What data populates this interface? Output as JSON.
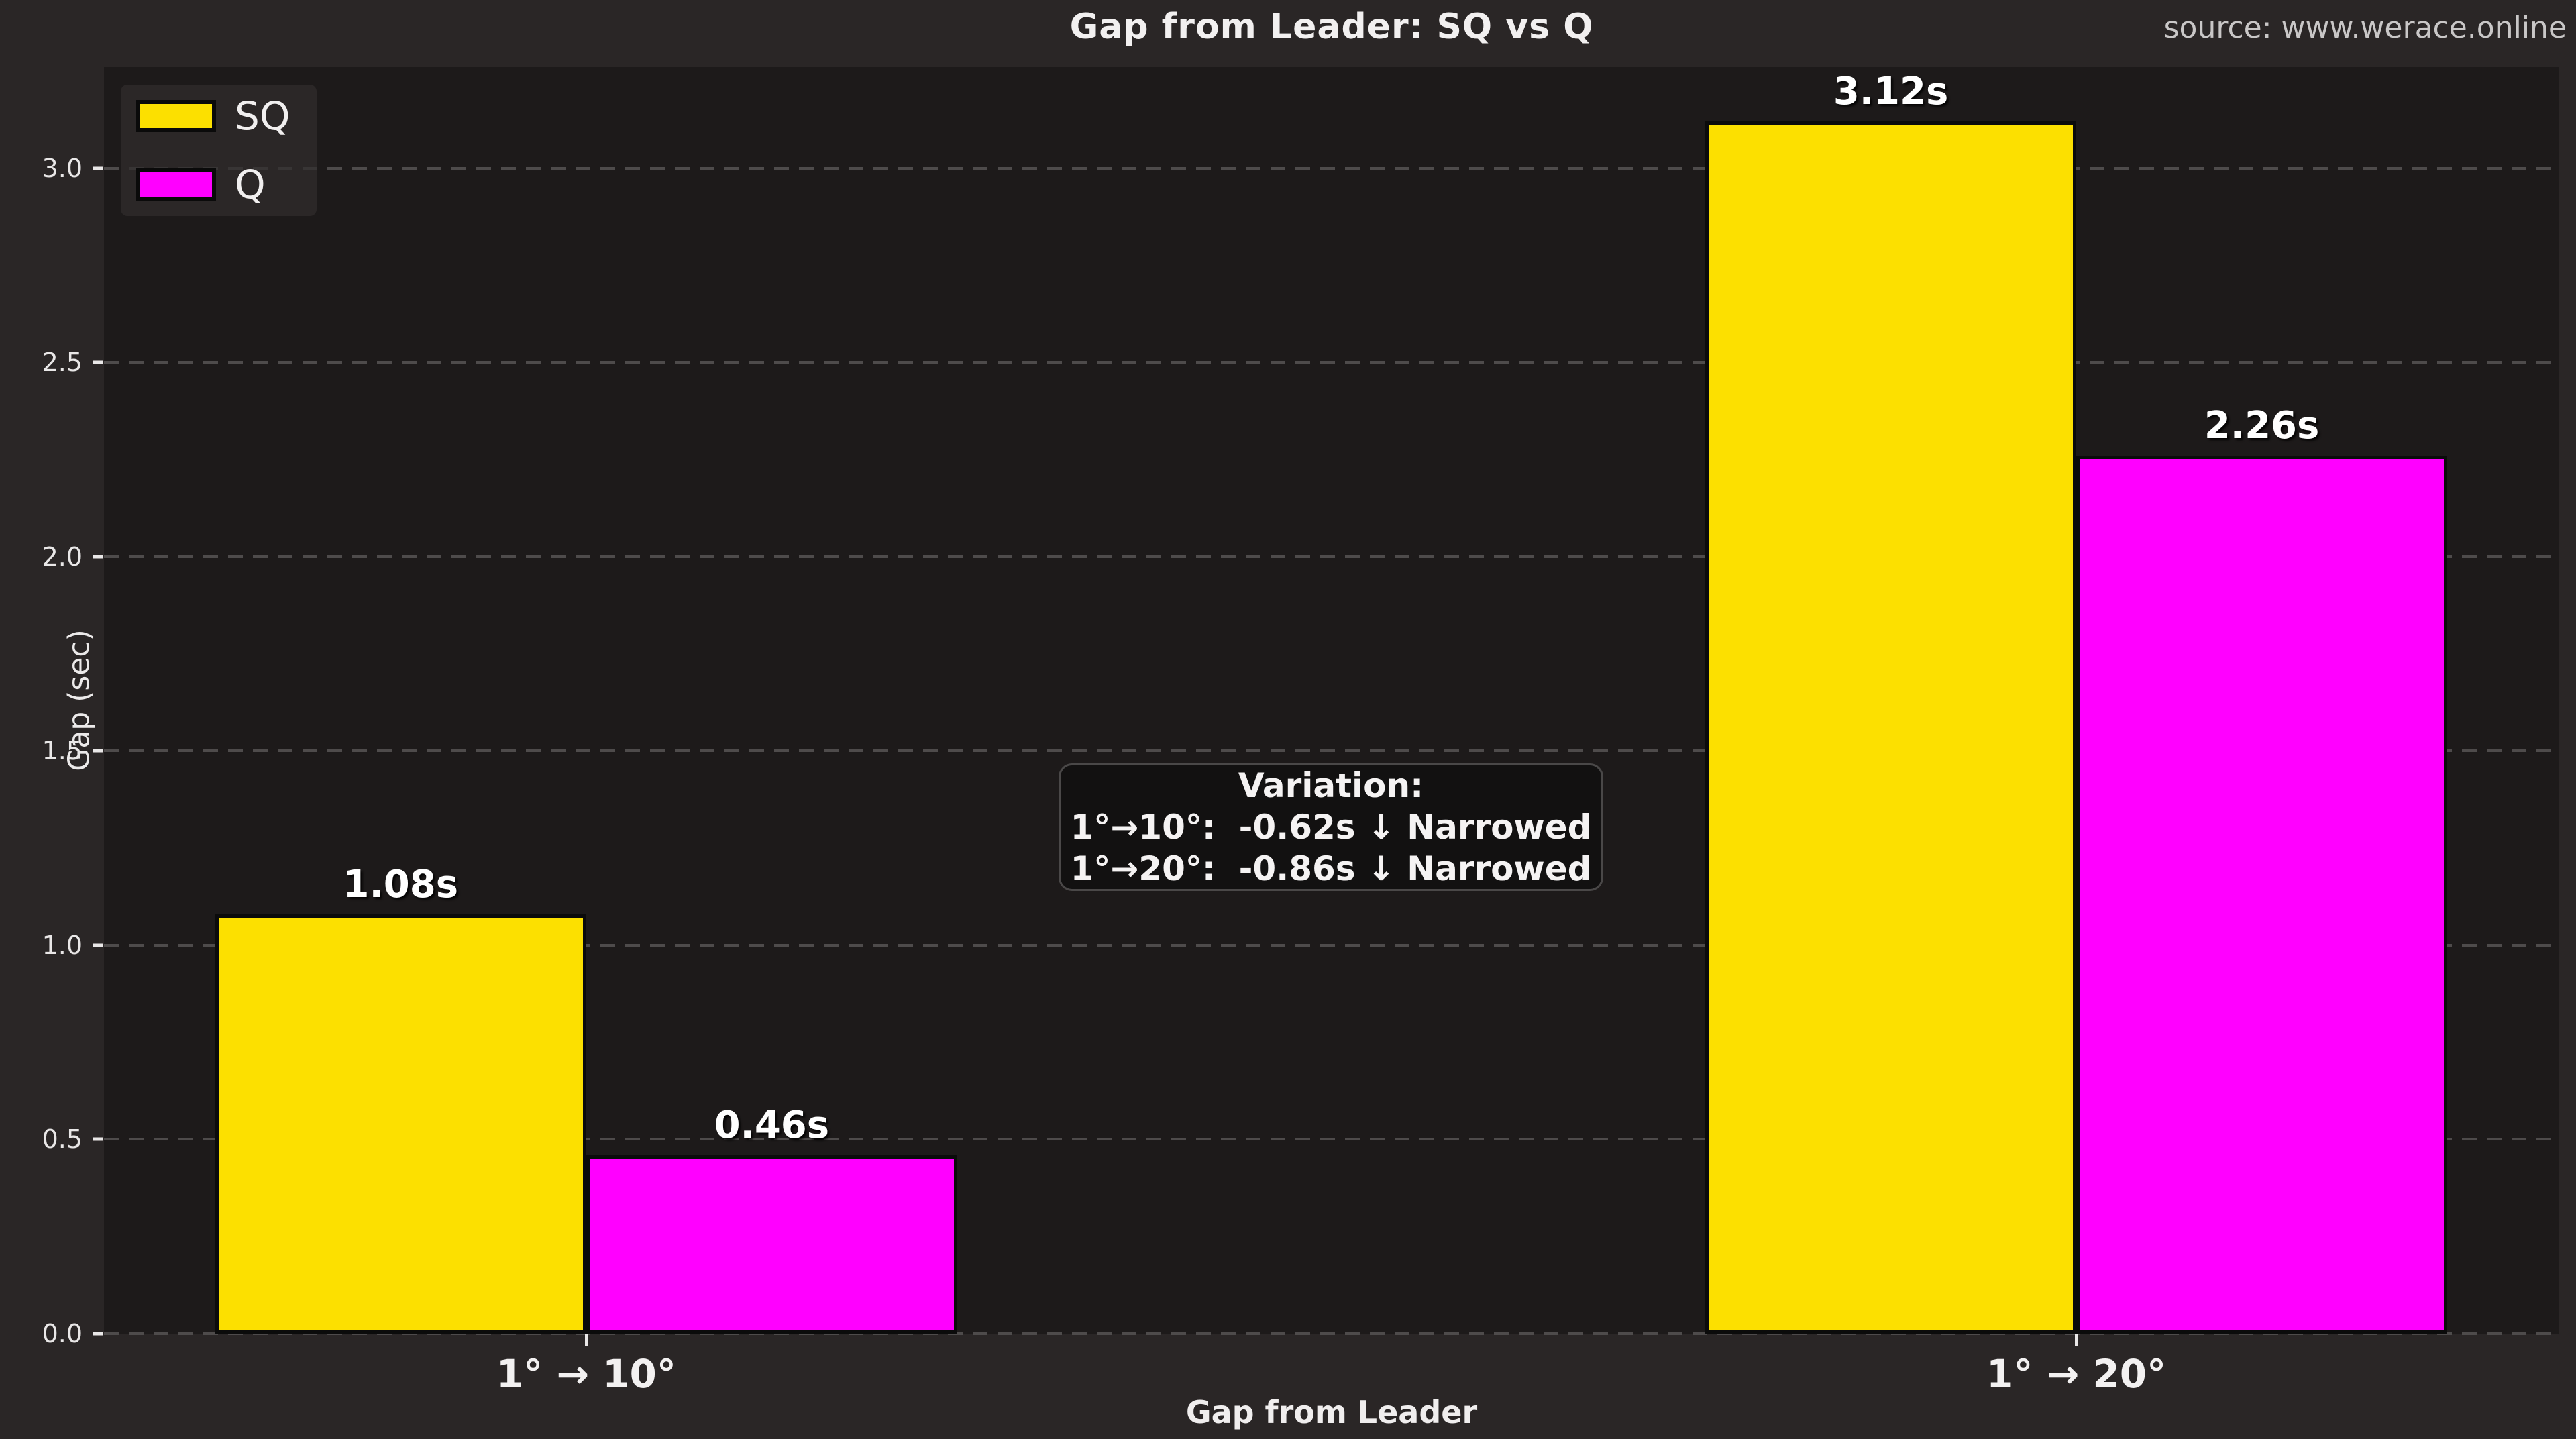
{
  "header": {
    "title": "Gap from Leader: SQ vs Q",
    "source": "source: www.werace.online"
  },
  "chart_data": {
    "type": "bar",
    "title": "Gap from Leader: SQ vs Q",
    "xlabel": "Gap from Leader",
    "ylabel": "Gap (sec)",
    "categories": [
      "1° → 10°",
      "1° → 20°"
    ],
    "series": [
      {
        "name": "SQ",
        "color": "#fce000",
        "values": [
          1.08,
          3.12
        ],
        "value_labels": [
          "1.08s",
          "3.12s"
        ]
      },
      {
        "name": "Q",
        "color": "#ff00ff",
        "values": [
          0.46,
          2.26
        ],
        "value_labels": [
          "0.46s",
          "2.26s"
        ]
      }
    ],
    "ylim": [
      0,
      3.26
    ],
    "yticks": [
      0.0,
      0.5,
      1.0,
      1.5,
      2.0,
      2.5,
      3.0
    ],
    "ytick_labels": [
      "0.0",
      "0.5",
      "1.0",
      "1.5",
      "2.0",
      "2.5",
      "3.0"
    ],
    "grid": "horizontal dashed",
    "legend_position": "upper left",
    "annotation": {
      "title": "Variation:",
      "lines": [
        "1°→10°:  -0.62s ↓ Narrowed",
        "1°→20°:  -0.86s ↓ Narrowed"
      ]
    },
    "colors": {
      "figure_background": "#2a2626",
      "plot_background": "#1d1a1a",
      "grid_color": "#4e4b4b",
      "text_color": "#f2f0f0",
      "sq_bar": "#fce000",
      "q_bar": "#ff00ff",
      "bar_edge": "#0b0b0b",
      "annotation_background": "#121111"
    }
  }
}
